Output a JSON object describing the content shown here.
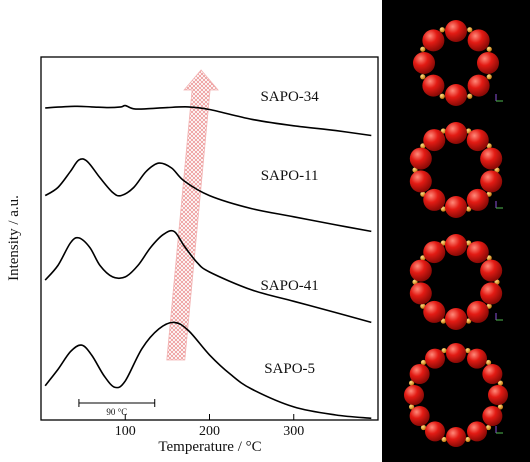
{
  "chart_data": {
    "type": "line",
    "xlabel": "Temperature / °C",
    "ylabel": "Intensity / a.u.",
    "xlim": [
      0,
      400
    ],
    "xticks": [
      100,
      200,
      300
    ],
    "xtick_labels": [
      "100",
      "200",
      "300"
    ],
    "scale_bar_label": "90 °C",
    "scale_bar_range": [
      45,
      135
    ],
    "arrow_range": [
      160,
      190
    ],
    "series": [
      {
        "name": "SAPO-34",
        "label_x": 250,
        "points": [
          [
            5,
            10.25
          ],
          [
            40,
            10.3
          ],
          [
            60,
            10.28
          ],
          [
            80,
            10.26
          ],
          [
            95,
            10.28
          ],
          [
            100,
            10.32
          ],
          [
            110,
            10.22
          ],
          [
            125,
            10.22
          ],
          [
            150,
            10.26
          ],
          [
            175,
            10.28
          ],
          [
            200,
            10.2
          ],
          [
            250,
            9.9
          ],
          [
            300,
            9.7
          ],
          [
            350,
            9.55
          ],
          [
            392,
            9.4
          ]
        ]
      },
      {
        "name": "SAPO-11",
        "label_x": 250,
        "points": [
          [
            5,
            7.55
          ],
          [
            20,
            7.8
          ],
          [
            35,
            8.3
          ],
          [
            45,
            8.65
          ],
          [
            55,
            8.6
          ],
          [
            70,
            8.1
          ],
          [
            85,
            7.65
          ],
          [
            95,
            7.55
          ],
          [
            110,
            7.8
          ],
          [
            125,
            8.3
          ],
          [
            140,
            8.55
          ],
          [
            155,
            8.4
          ],
          [
            170,
            8.0
          ],
          [
            200,
            7.55
          ],
          [
            250,
            7.15
          ],
          [
            300,
            6.9
          ],
          [
            350,
            6.65
          ],
          [
            392,
            6.45
          ]
        ]
      },
      {
        "name": "SAPO-41",
        "label_x": 250,
        "points": [
          [
            5,
            4.95
          ],
          [
            20,
            5.4
          ],
          [
            35,
            6.1
          ],
          [
            45,
            6.25
          ],
          [
            58,
            5.95
          ],
          [
            70,
            5.4
          ],
          [
            85,
            5.05
          ],
          [
            100,
            5.05
          ],
          [
            115,
            5.4
          ],
          [
            130,
            5.95
          ],
          [
            145,
            6.35
          ],
          [
            158,
            6.45
          ],
          [
            170,
            6.0
          ],
          [
            185,
            5.5
          ],
          [
            200,
            5.2
          ],
          [
            250,
            4.65
          ],
          [
            300,
            4.3
          ],
          [
            350,
            3.95
          ],
          [
            392,
            3.65
          ]
        ]
      },
      {
        "name": "SAPO-5",
        "label_x": 250,
        "points": [
          [
            5,
            1.7
          ],
          [
            20,
            2.2
          ],
          [
            35,
            2.75
          ],
          [
            48,
            2.95
          ],
          [
            60,
            2.65
          ],
          [
            75,
            2.0
          ],
          [
            88,
            1.65
          ],
          [
            100,
            1.85
          ],
          [
            120,
            2.85
          ],
          [
            140,
            3.45
          ],
          [
            158,
            3.65
          ],
          [
            175,
            3.4
          ],
          [
            200,
            2.65
          ],
          [
            225,
            2.05
          ],
          [
            250,
            1.6
          ],
          [
            300,
            1.05
          ],
          [
            350,
            0.8
          ],
          [
            392,
            0.7
          ]
        ]
      }
    ]
  },
  "structures": {
    "background": "#000000",
    "atom_color": "#e31b14",
    "bridge_color": "#f0a020",
    "rings": [
      {
        "name": "SAPO-34",
        "members": 8
      },
      {
        "name": "SAPO-11",
        "members": 10
      },
      {
        "name": "SAPO-41",
        "members": 10
      },
      {
        "name": "SAPO-5",
        "members": 12
      }
    ]
  }
}
